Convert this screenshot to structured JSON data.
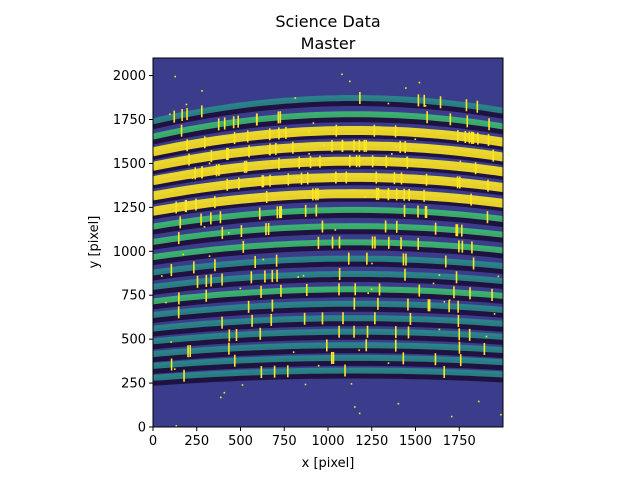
{
  "chart_data": {
    "type": "heatmap",
    "title_lines": [
      "Science Data",
      "Master"
    ],
    "xlabel": "x [pixel]",
    "ylabel": "y [pixel]",
    "xlim": [
      0,
      2000
    ],
    "ylim": [
      0,
      2100
    ],
    "x_ticks": [
      0,
      250,
      500,
      750,
      1000,
      1250,
      1500,
      1750
    ],
    "y_ticks": [
      0,
      250,
      500,
      750,
      1000,
      1250,
      1500,
      1750,
      2000
    ],
    "colormap": "viridis",
    "colors": {
      "background": "#3b3d8c",
      "dark_gap": "#1f1240",
      "mid": "#2a8a8a",
      "bright": "#3dbb70",
      "saturated": "#fde725"
    },
    "echelle_orders": [
      {
        "y_center": 1790,
        "intensity": 0.45
      },
      {
        "y_center": 1700,
        "intensity": 0.65
      },
      {
        "y_center": 1610,
        "intensity": 1.0
      },
      {
        "y_center": 1525,
        "intensity": 1.0
      },
      {
        "y_center": 1440,
        "intensity": 1.0
      },
      {
        "y_center": 1350,
        "intensity": 0.95
      },
      {
        "y_center": 1260,
        "intensity": 1.0
      },
      {
        "y_center": 1170,
        "intensity": 0.75
      },
      {
        "y_center": 1080,
        "intensity": 0.6
      },
      {
        "y_center": 990,
        "intensity": 0.55
      },
      {
        "y_center": 900,
        "intensity": 0.5
      },
      {
        "y_center": 815,
        "intensity": 0.5
      },
      {
        "y_center": 730,
        "intensity": 0.55
      },
      {
        "y_center": 650,
        "intensity": 0.45
      },
      {
        "y_center": 570,
        "intensity": 0.35
      },
      {
        "y_center": 495,
        "intensity": 0.4
      },
      {
        "y_center": 420,
        "intensity": 0.25
      },
      {
        "y_center": 350,
        "intensity": 0.2
      },
      {
        "y_center": 280,
        "intensity": 0.15
      }
    ]
  }
}
